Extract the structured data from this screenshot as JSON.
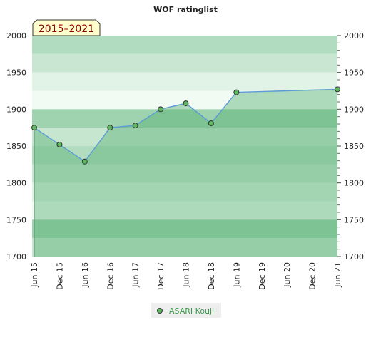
{
  "chart_data": {
    "type": "area",
    "title": "WOF ratinglist",
    "period_badge": "2015–2021",
    "xlabel": "",
    "ylabel": "",
    "ylim": [
      1700,
      2000
    ],
    "yticks": [
      1700,
      1750,
      1800,
      1850,
      1900,
      1950,
      2000
    ],
    "x_tick_labels": [
      "Jun 15",
      "Dec 15",
      "Jun 16",
      "Dec 16",
      "Jun 17",
      "Dec 17",
      "Jun 18",
      "Dec 18",
      "Jun 19",
      "Dec 19",
      "Jun 20",
      "Dec 20",
      "Jun 21"
    ],
    "grid": true,
    "legend_position": "bottom-center",
    "series": [
      {
        "name": "ASARI Kouji",
        "x": [
          "Jun 15",
          "Dec 15",
          "Jun 16",
          "Dec 16",
          "Jun 17",
          "Dec 17",
          "Jun 18",
          "Dec 18",
          "Jun 19",
          "Jun 21"
        ],
        "values": [
          1875,
          1852,
          1829,
          1875,
          1878,
          1900,
          1908,
          1881,
          1923,
          1927
        ]
      }
    ]
  },
  "colors": {
    "line": "#5b9bd5",
    "marker": "#5cb85c",
    "legend_text": "#3a9a4a",
    "title": "#222222",
    "badge_bg": "#ffffcc",
    "badge_text": "#8b0000"
  }
}
